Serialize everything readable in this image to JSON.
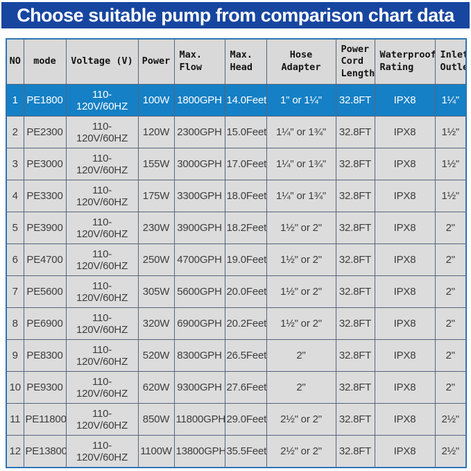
{
  "banner": {
    "title": "Choose suitable pump from comparison chart data"
  },
  "colors": {
    "banner_bg": "#1746a0",
    "banner_text": "#ffffff",
    "header_bg": "#d9d9d9",
    "row_bg": "#dcdcdc",
    "highlight_row_bg": "#1580c5",
    "highlight_row_text": "#ffffff",
    "outer_border": "#2e74b5",
    "grid_line": "#55657f",
    "body_text": "#3d3d3d"
  },
  "chart_data": {
    "type": "table",
    "title": "Choose suitable pump from comparison chart data",
    "columns": [
      "NO",
      "mode",
      "Voltage (V)",
      "Power",
      "Max. Flow",
      "Max. Head",
      "Hose Adapter",
      "Power Cord Length",
      "Waterproof Rating",
      "Inlet/Outlet"
    ],
    "header_labels": [
      "NO",
      "mode",
      "Voltage (V)",
      "Power",
      "Max.\nFlow",
      "Max.\nHead",
      "Hose Adapter",
      "Power\nCord\nLength",
      "Waterproof\nRating",
      "Inlet/\nOutlet"
    ],
    "header_align": [
      "center",
      "center",
      "center",
      "center",
      "left",
      "left",
      "center",
      "left",
      "left",
      "left"
    ],
    "highlighted_row_index": 0,
    "rows": [
      [
        "1",
        "PE1800",
        "110-120V/60HZ",
        "100W",
        "1800GPH",
        "14.0Feet",
        "1\" or 1¼\"",
        "32.8FT",
        "IPX8",
        "1¼\""
      ],
      [
        "2",
        "PE2300",
        "110-120V/60HZ",
        "120W",
        "2300GPH",
        "15.0Feet",
        "1¼\" or 1¾\"",
        "32.8FT",
        "IPX8",
        "1½\""
      ],
      [
        "3",
        "PE3000",
        "110-120V/60HZ",
        "155W",
        "3000GPH",
        "17.0Feet",
        "1¼\" or 1¾\"",
        "32.8FT",
        "IPX8",
        "1½\""
      ],
      [
        "4",
        "PE3300",
        "110-120V/60HZ",
        "175W",
        "3300GPH",
        "18.0Feet",
        "1¼\" or 1¾\"",
        "32.8FT",
        "IPX8",
        "1½\""
      ],
      [
        "5",
        "PE3900",
        "110-120V/60HZ",
        "230W",
        "3900GPH",
        "18.2Feet",
        "1½\" or 2\"",
        "32.8FT",
        "IPX8",
        "2\""
      ],
      [
        "6",
        "PE4700",
        "110-120V/60HZ",
        "250W",
        "4700GPH",
        "19.0Feet",
        "1½\" or 2\"",
        "32.8FT",
        "IPX8",
        "2\""
      ],
      [
        "7",
        "PE5600",
        "110-120V/60HZ",
        "305W",
        "5600GPH",
        "20.0Feet",
        "1½\" or 2\"",
        "32.8FT",
        "IPX8",
        "2\""
      ],
      [
        "8",
        "PE6900",
        "110-120V/60HZ",
        "320W",
        "6900GPH",
        "20.2Feet",
        "1½\" or 2\"",
        "32.8FT",
        "IPX8",
        "2\""
      ],
      [
        "9",
        "PE8300",
        "110-120V/60HZ",
        "520W",
        "8300GPH",
        "26.5Feet",
        "2\"",
        "32.8FT",
        "IPX8",
        "2\""
      ],
      [
        "10",
        "PE9300",
        "110-120V/60HZ",
        "620W",
        "9300GPH",
        "27.6Feet",
        "2\"",
        "32.8FT",
        "IPX8",
        "2\""
      ],
      [
        "11",
        "PE11800",
        "110-120V/60HZ",
        "850W",
        "11800GPH",
        "29.0Feet",
        "2½\" or 2\"",
        "32.8FT",
        "IPX8",
        "2½\""
      ],
      [
        "12",
        "PE13800",
        "110-120V/60HZ",
        "1100W",
        "13800GPH",
        "35.5Feet",
        "2½\" or 2\"",
        "32.8FT",
        "IPX8",
        "2½\""
      ]
    ]
  }
}
